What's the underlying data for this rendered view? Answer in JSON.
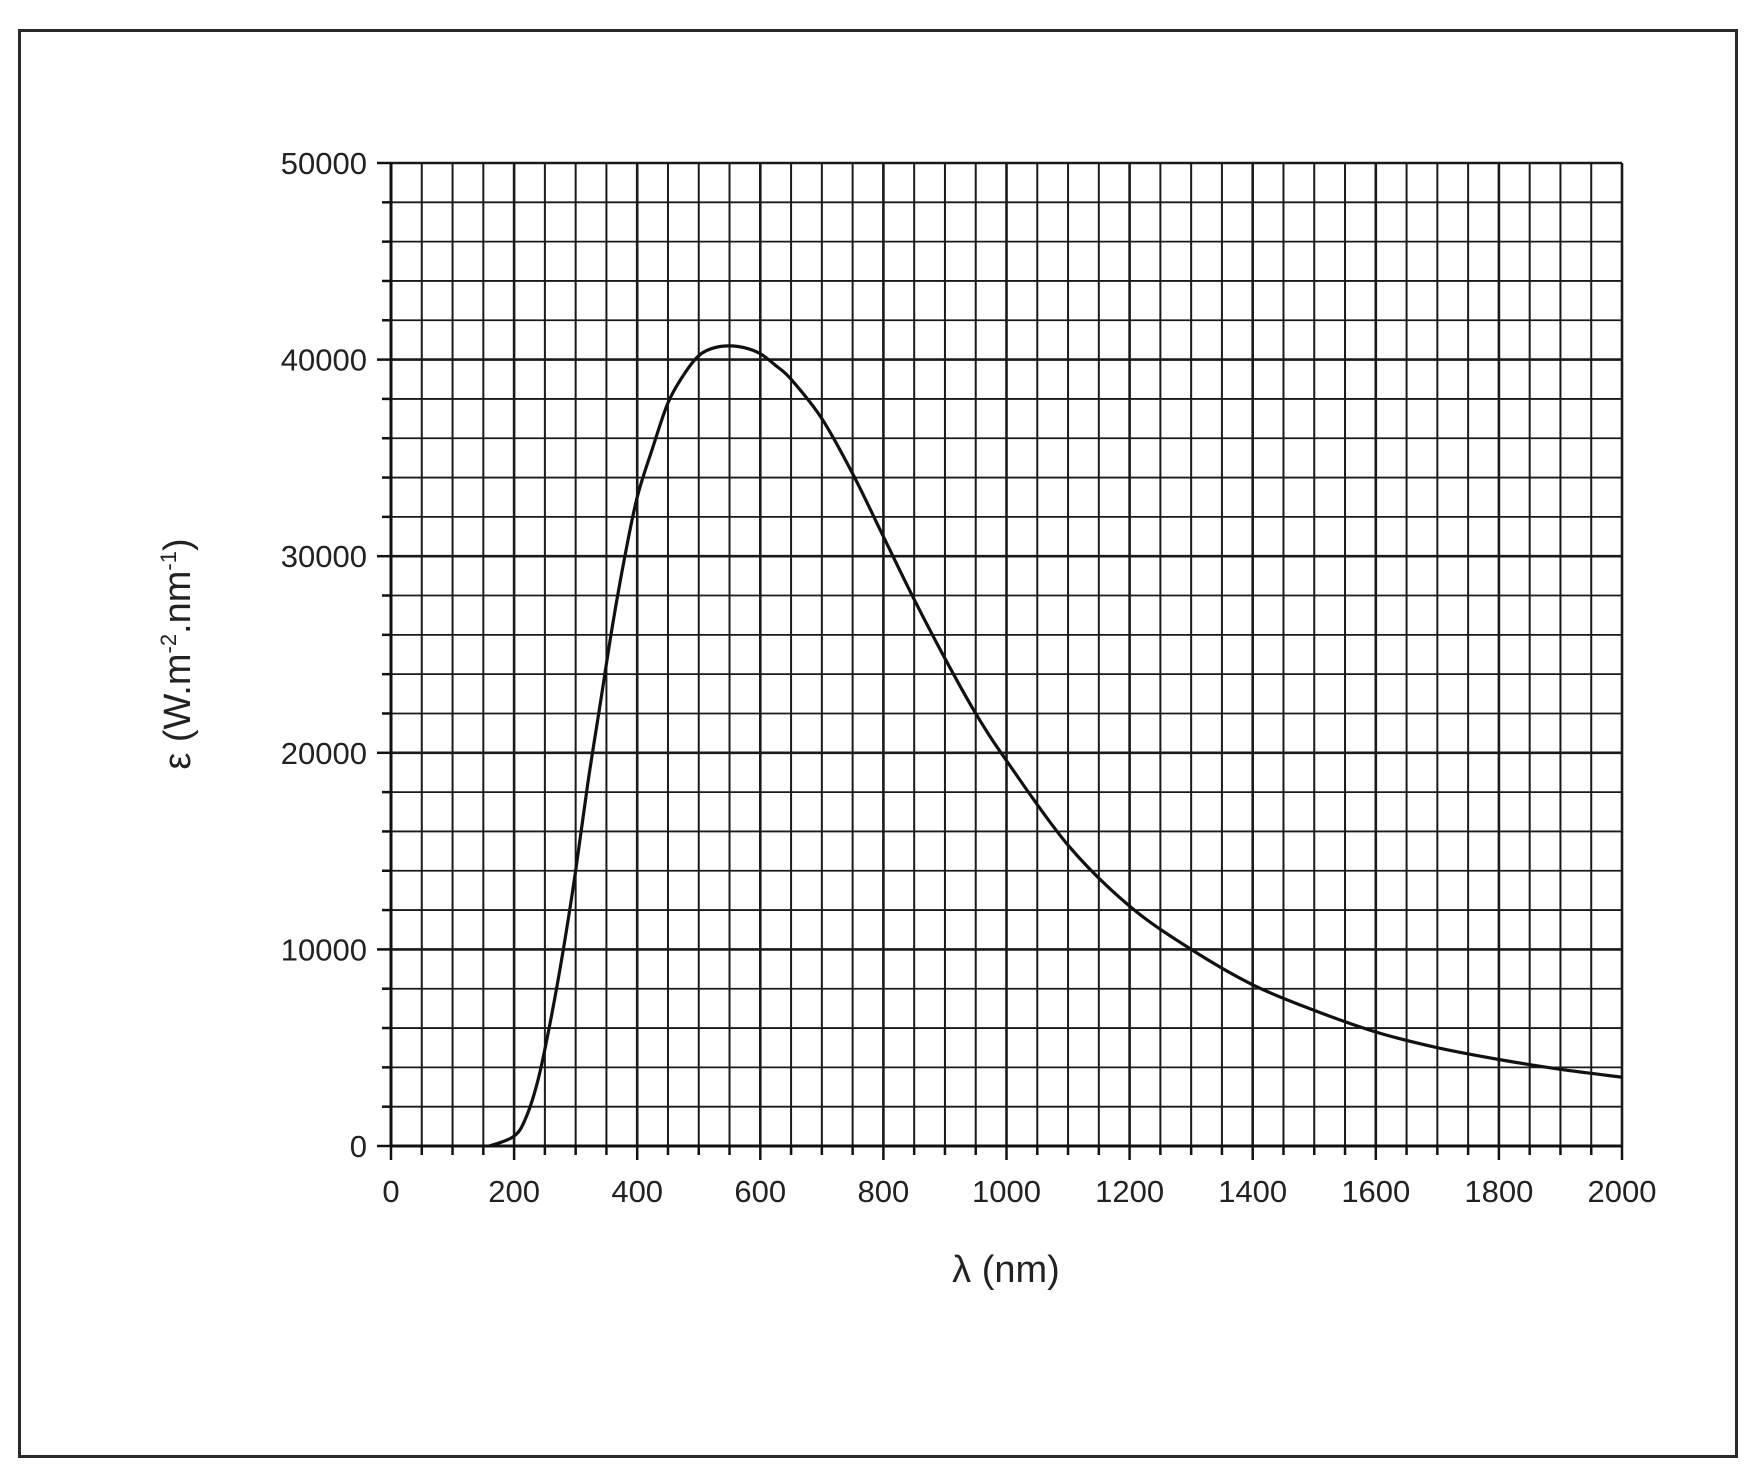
{
  "chart_data": {
    "type": "line",
    "title": "",
    "xlabel": "λ (nm)",
    "ylabel_parts": {
      "base": "ε (W.m",
      "exp1": "-2",
      "mid": ".nm",
      "exp2": "-1",
      "end": ")"
    },
    "xlim": [
      0,
      2000
    ],
    "ylim": [
      0,
      50000
    ],
    "x_ticks": [
      0,
      200,
      400,
      600,
      800,
      1000,
      1200,
      1400,
      1600,
      1800,
      2000
    ],
    "y_ticks": [
      0,
      10000,
      20000,
      30000,
      40000,
      50000
    ],
    "grid": true,
    "grid_x_step": 50,
    "grid_y_step": 2000,
    "series": [
      {
        "color": "#111111",
        "x": [
          160,
          200,
          220,
          240,
          260,
          280,
          300,
          320,
          340,
          360,
          380,
          400,
          425,
          450,
          475,
          500,
          525,
          550,
          575,
          600,
          625,
          650,
          700,
          750,
          800,
          850,
          900,
          950,
          1000,
          1100,
          1200,
          1300,
          1400,
          1500,
          1600,
          1700,
          1800,
          1900,
          2000
        ],
        "y": [
          0,
          500,
          1500,
          3500,
          6500,
          10000,
          14000,
          18500,
          22500,
          26500,
          30000,
          33000,
          35500,
          37800,
          39200,
          40200,
          40600,
          40700,
          40600,
          40300,
          39700,
          39000,
          37000,
          34200,
          31000,
          27800,
          24800,
          22000,
          19600,
          15300,
          12200,
          10000,
          8200,
          6900,
          5800,
          5000,
          4400,
          3900,
          3500
        ]
      }
    ]
  }
}
